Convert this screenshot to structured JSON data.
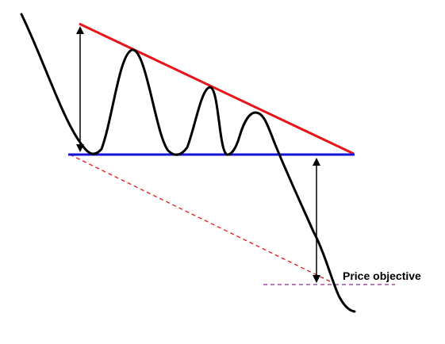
{
  "labels": {
    "price_objective": "Price objective"
  },
  "colors": {
    "price_line": "#000000",
    "resistance_line": "#e8141a",
    "support_line": "#1414d4",
    "projection_line": "#e8141a",
    "objective_line": "#8a2a8e",
    "arrow": "#000000",
    "label": "#000000"
  },
  "elements": {
    "price_curve": "price-path",
    "resistance": "descending-trendline",
    "support": "horizontal-support-line",
    "projection": "dashed-projection-line",
    "objective": "dashed-price-objective-line",
    "height_arrow": "pattern-height-arrow",
    "target_arrow": "measured-move-arrow"
  }
}
